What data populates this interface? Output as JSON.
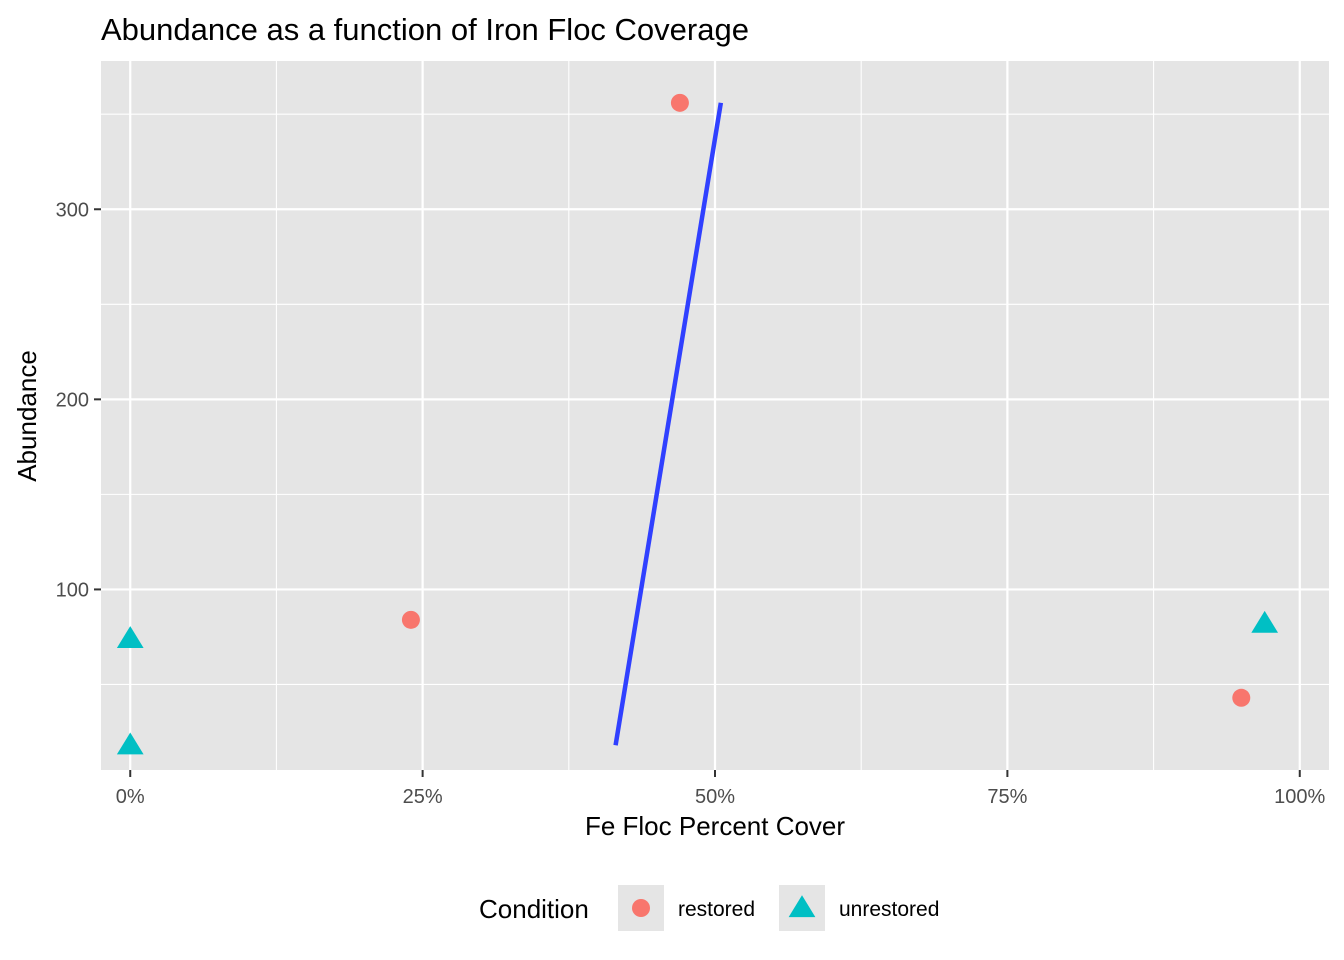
{
  "chart_data": {
    "type": "scatter",
    "title": "Abundance as a function of Iron Floc Coverage",
    "xlabel": "Fe Floc Percent Cover",
    "ylabel": "Abundance",
    "xlim": [
      -0.025,
      1.025
    ],
    "ylim": [
      5,
      378
    ],
    "x_ticks": [
      0,
      0.25,
      0.5,
      0.75,
      1.0
    ],
    "x_tick_labels": [
      "0%",
      "25%",
      "50%",
      "75%",
      "100%"
    ],
    "y_ticks": [
      100,
      200,
      300
    ],
    "y_tick_labels": [
      "100",
      "200",
      "300"
    ],
    "grid": true,
    "legend": {
      "title": "Condition",
      "position": "bottom",
      "entries": [
        {
          "label": "restored",
          "shape": "circle",
          "color": "#F8766D"
        },
        {
          "label": "unrestored",
          "shape": "triangle",
          "color": "#00BFC4"
        }
      ]
    },
    "series": [
      {
        "name": "restored",
        "shape": "circle",
        "color": "#F8766D",
        "points": [
          {
            "x": 0.24,
            "y": 84
          },
          {
            "x": 0.47,
            "y": 356
          },
          {
            "x": 0.95,
            "y": 43
          }
        ]
      },
      {
        "name": "unrestored",
        "shape": "triangle",
        "color": "#00BFC4",
        "points": [
          {
            "x": 0.0,
            "y": 74
          },
          {
            "x": 0.0,
            "y": 18
          },
          {
            "x": 0.97,
            "y": 82
          }
        ]
      }
    ],
    "fit_line": {
      "color": "#3040FF",
      "points": [
        {
          "x": 0.415,
          "y": 18
        },
        {
          "x": 0.505,
          "y": 356
        }
      ]
    },
    "colors": {
      "panel_background": "#E5E5E5",
      "grid": "#FFFFFF",
      "tick_text": "#4D4D4D"
    }
  }
}
